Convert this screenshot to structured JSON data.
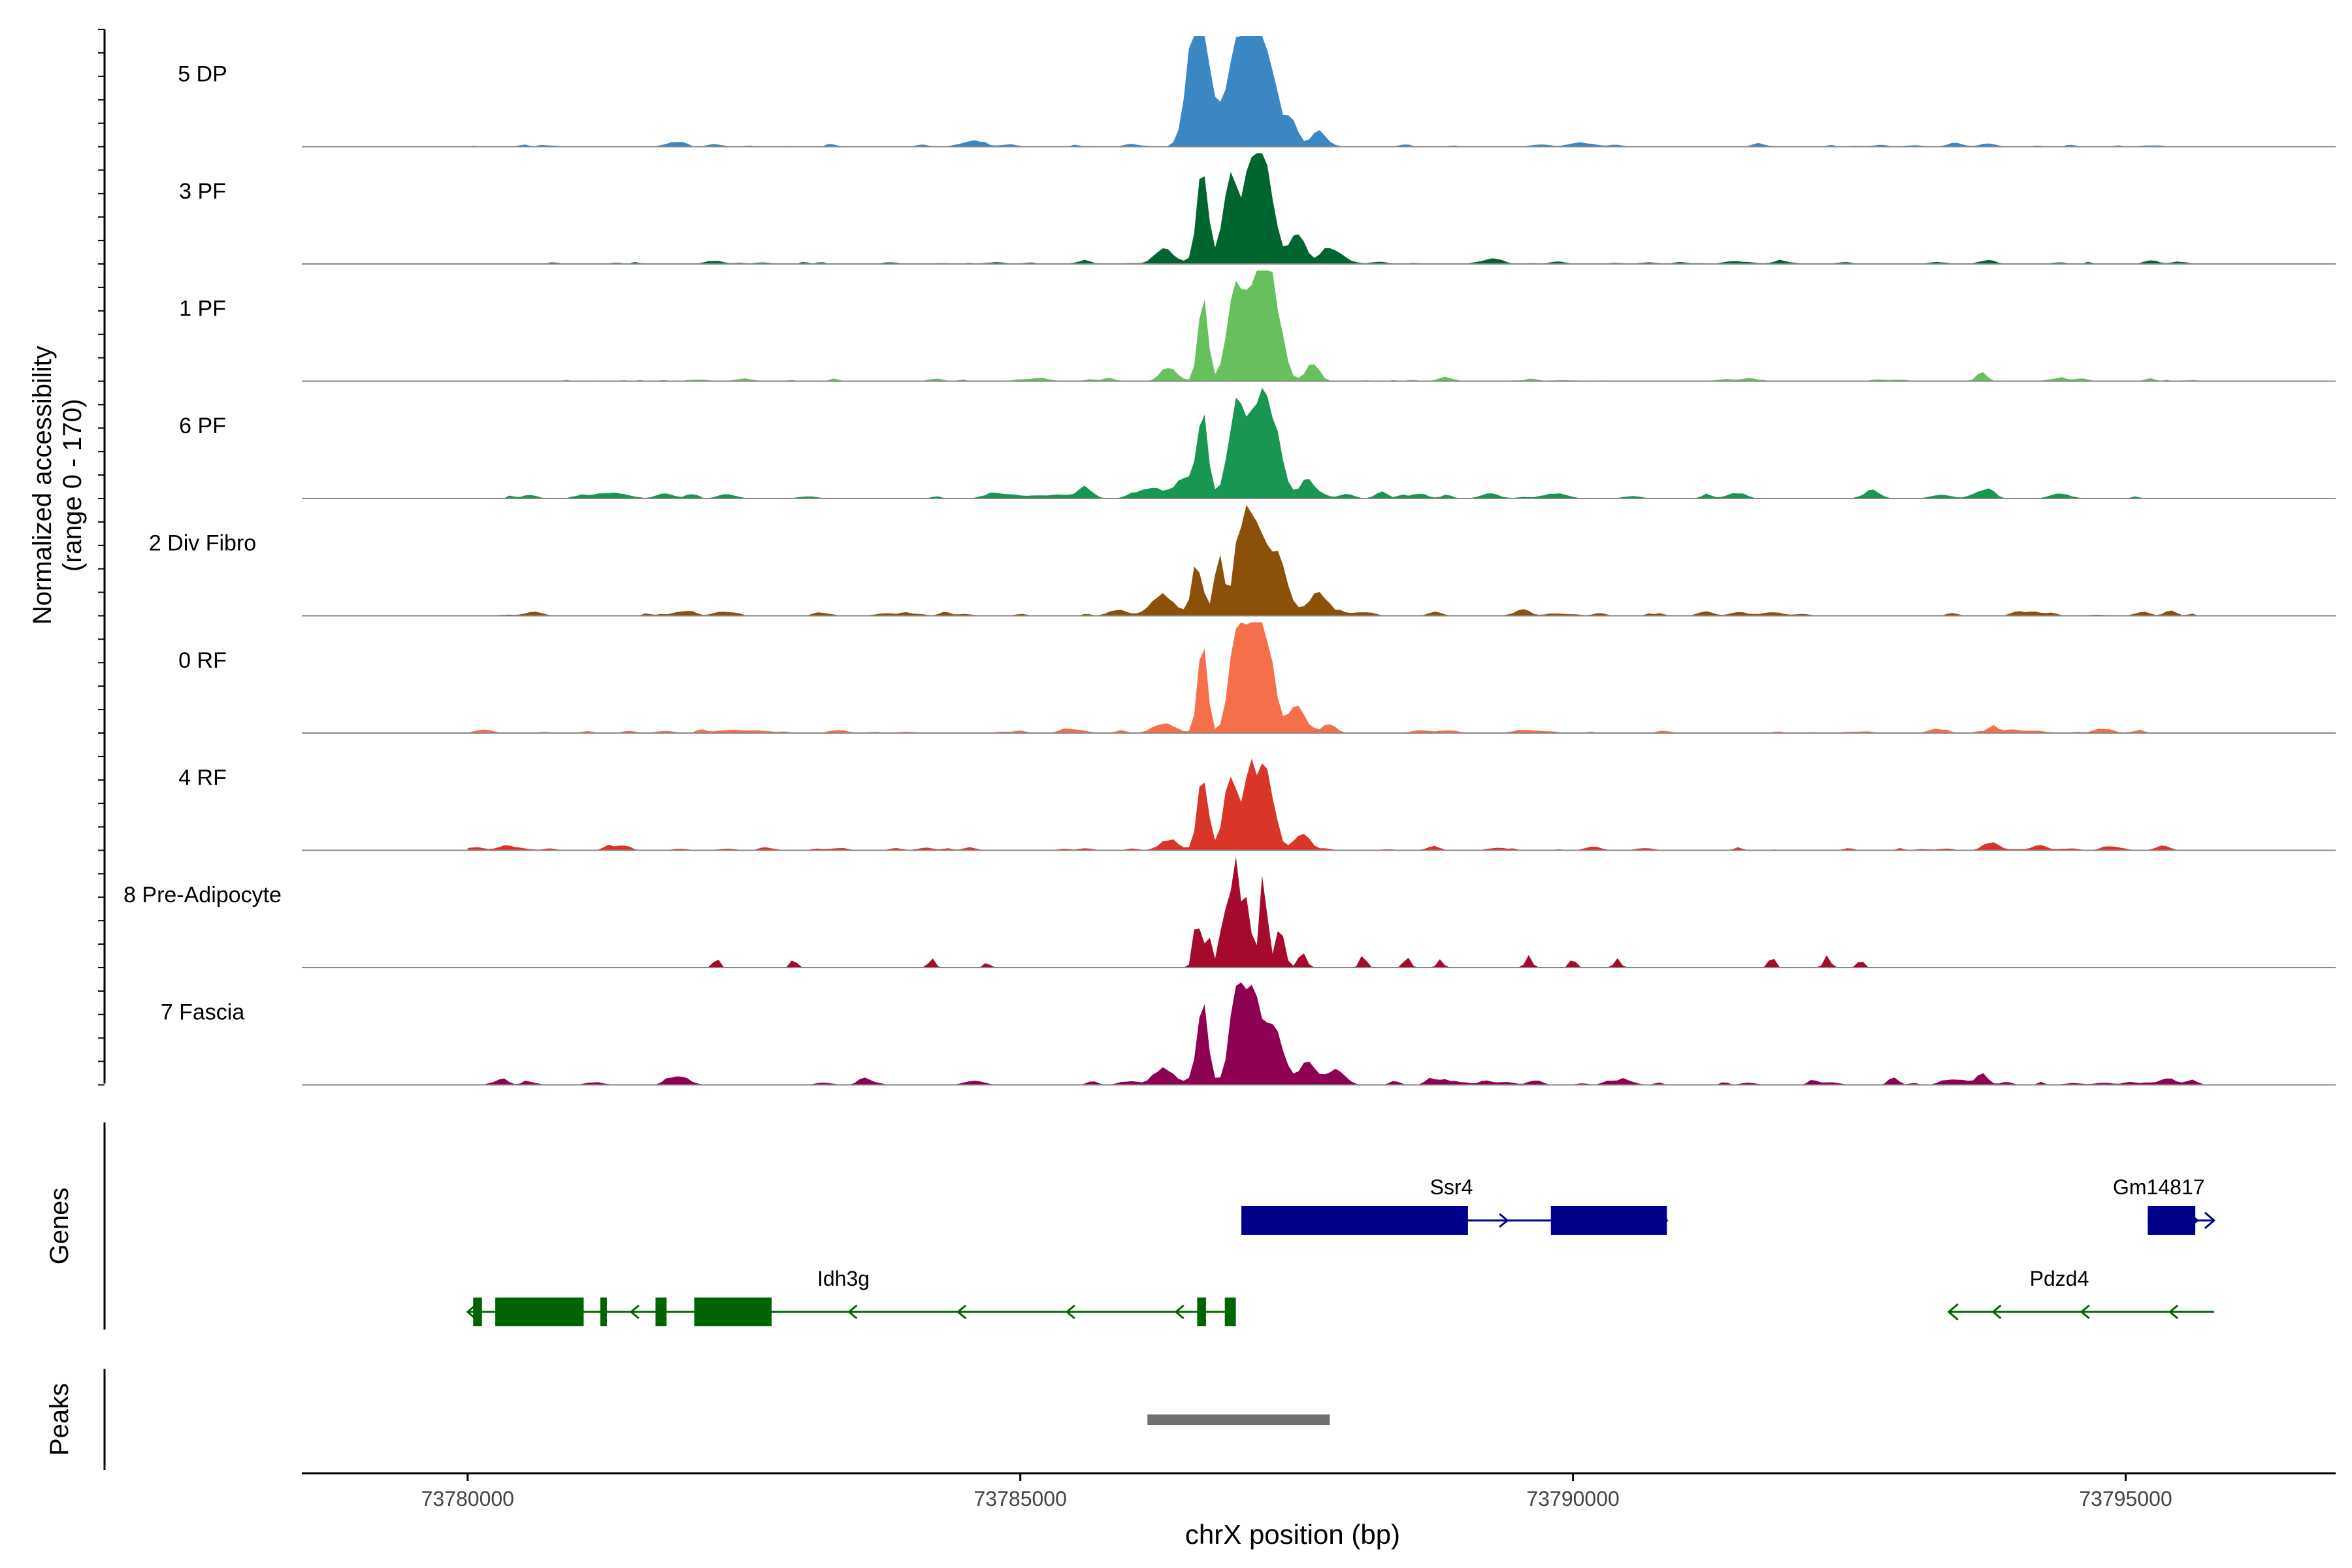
{
  "chart_data": {
    "type": "area",
    "title": "",
    "region": {
      "chrom": "chrX",
      "start": 73778500,
      "end": 73796900
    },
    "ylabel": "Normalized accessibility",
    "ylabel_range": "(range 0 - 170)",
    "ylim": [
      0,
      170
    ],
    "xlabel": "chrX position (bp)",
    "x_ticks": [
      73780000,
      73785000,
      73790000,
      73795000
    ],
    "tick_labels": [
      "73780000",
      "73785000",
      "73790000",
      "73795000"
    ],
    "panel_labels": {
      "genes": "Genes",
      "peaks": "Peaks"
    },
    "series": [
      {
        "name": "5 DP",
        "color": "#3A87C3",
        "noise": 3,
        "peaks": [
          [
            73786550,
            80,
            100
          ],
          [
            73786650,
            150,
            130
          ],
          [
            73786950,
            140,
            110
          ],
          [
            73787100,
            165,
            120
          ],
          [
            73787250,
            110,
            110
          ],
          [
            73787450,
            45,
            80
          ],
          [
            73787700,
            25,
            90
          ],
          [
            73793750,
            5,
            100
          ]
        ]
      },
      {
        "name": "3 PF",
        "color": "#00652F",
        "noise": 3,
        "peaks": [
          [
            73786300,
            20,
            120
          ],
          [
            73786650,
            145,
            70
          ],
          [
            73786900,
            130,
            90
          ],
          [
            73787100,
            150,
            110
          ],
          [
            73787250,
            115,
            90
          ],
          [
            73787500,
            40,
            100
          ],
          [
            73787800,
            25,
            120
          ],
          [
            73793750,
            6,
            100
          ]
        ]
      },
      {
        "name": "1 PF",
        "color": "#67BF5E",
        "noise": 3,
        "peaks": [
          [
            73786350,
            20,
            100
          ],
          [
            73786650,
            130,
            60
          ],
          [
            73786950,
            150,
            100
          ],
          [
            73787150,
            175,
            110
          ],
          [
            73787300,
            110,
            100
          ],
          [
            73787650,
            25,
            80
          ],
          [
            73793700,
            12,
            60
          ]
        ]
      },
      {
        "name": "6 PF",
        "color": "#199752",
        "noise": 6,
        "peaks": [
          [
            73786200,
            15,
            160
          ],
          [
            73786500,
            35,
            120
          ],
          [
            73786650,
            125,
            65
          ],
          [
            73786950,
            130,
            100
          ],
          [
            73787150,
            145,
            120
          ],
          [
            73787300,
            85,
            100
          ],
          [
            73787600,
            25,
            90
          ],
          [
            73785600,
            12,
            90
          ],
          [
            73793750,
            8,
            90
          ]
        ]
      },
      {
        "name": "2 Div Fibro",
        "color": "#8B510A",
        "noise": 5,
        "peaks": [
          [
            73786300,
            25,
            140
          ],
          [
            73786600,
            80,
            70
          ],
          [
            73786800,
            90,
            60
          ],
          [
            73787000,
            120,
            90
          ],
          [
            73787150,
            140,
            120
          ],
          [
            73787350,
            80,
            110
          ],
          [
            73787700,
            35,
            110
          ],
          [
            73791200,
            7,
            90
          ]
        ]
      },
      {
        "name": "0 RF",
        "color": "#F5704A",
        "noise": 3,
        "peaks": [
          [
            73786300,
            15,
            140
          ],
          [
            73786650,
            135,
            60
          ],
          [
            73786950,
            145,
            90
          ],
          [
            73787100,
            155,
            110
          ],
          [
            73787250,
            120,
            90
          ],
          [
            73787500,
            40,
            100
          ],
          [
            73787800,
            15,
            80
          ],
          [
            73793800,
            10,
            60
          ]
        ]
      },
      {
        "name": "4 RF",
        "color": "#D93529",
        "noise": 4,
        "peaks": [
          [
            73786350,
            15,
            120
          ],
          [
            73786650,
            120,
            65
          ],
          [
            73786900,
            105,
            90
          ],
          [
            73787100,
            120,
            110
          ],
          [
            73787250,
            90,
            90
          ],
          [
            73787550,
            25,
            100
          ],
          [
            73793750,
            6,
            80
          ]
        ]
      },
      {
        "name": "8 Pre-Adipocyte",
        "color": "#A60A2C",
        "noise": 0,
        "peaks": [
          [
            73786600,
            80,
            45
          ],
          [
            73786700,
            50,
            45
          ],
          [
            73786850,
            95,
            55
          ],
          [
            73786950,
            165,
            50
          ],
          [
            73787050,
            120,
            45
          ],
          [
            73787200,
            135,
            50
          ],
          [
            73787350,
            60,
            55
          ],
          [
            73787550,
            25,
            50
          ],
          [
            73782250,
            14,
            40
          ],
          [
            73782950,
            14,
            40
          ],
          [
            73784200,
            14,
            40
          ],
          [
            73784700,
            10,
            30
          ],
          [
            73788100,
            18,
            40
          ],
          [
            73788500,
            18,
            40
          ],
          [
            73788800,
            12,
            40
          ],
          [
            73789600,
            18,
            40
          ],
          [
            73790000,
            14,
            40
          ],
          [
            73790400,
            14,
            40
          ],
          [
            73791800,
            18,
            40
          ],
          [
            73792300,
            20,
            40
          ],
          [
            73792600,
            12,
            40
          ]
        ]
      },
      {
        "name": "7 Fascia",
        "color": "#8E0152",
        "noise": 6,
        "peaks": [
          [
            73786300,
            25,
            140
          ],
          [
            73786650,
            115,
            70
          ],
          [
            73786950,
            125,
            90
          ],
          [
            73787100,
            140,
            110
          ],
          [
            73787300,
            95,
            100
          ],
          [
            73787600,
            35,
            110
          ],
          [
            73787850,
            20,
            120
          ],
          [
            73792900,
            12,
            60
          ],
          [
            73793700,
            18,
            70
          ]
        ]
      }
    ],
    "genes": [
      {
        "name": "Ssr4",
        "strand": "+",
        "start": 73787000,
        "end": 73790850,
        "row": 0,
        "label_x": 73788900,
        "exons": [
          [
            73787000,
            73789050
          ],
          [
            73789800,
            73790850
          ]
        ],
        "color": "#00008B"
      },
      {
        "name": "Gm14817",
        "strand": "+",
        "start": 73795200,
        "end": 73795800,
        "row": 0,
        "label_x": 73795300,
        "exons": [
          [
            73795200,
            73795630
          ]
        ],
        "color": "#00008B"
      },
      {
        "name": "Idh3g",
        "strand": "-",
        "start": 73780000,
        "end": 73786900,
        "row": 1,
        "label_x": 73783400,
        "exons": [
          [
            73780050,
            73780130
          ],
          [
            73780250,
            73781050
          ],
          [
            73781200,
            73781260
          ],
          [
            73781700,
            73781800
          ],
          [
            73782050,
            73782750
          ],
          [
            73786600,
            73786680
          ],
          [
            73786850,
            73786950
          ]
        ],
        "color": "#006400"
      },
      {
        "name": "Pdzd4",
        "strand": "-",
        "start": 73793400,
        "end": 73795800,
        "row": 1,
        "label_x": 73794400,
        "exons": [],
        "color": "#006400"
      }
    ],
    "peaks": [
      {
        "start": 73786150,
        "end": 73787800
      }
    ]
  }
}
